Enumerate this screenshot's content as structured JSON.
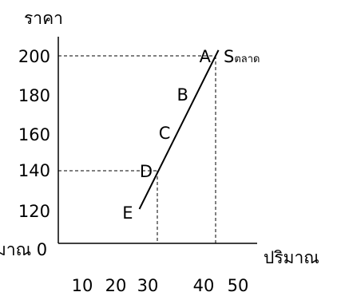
{
  "chart_data": {
    "type": "line",
    "ylabel": "ราคา",
    "xlabel": "ปริมาณ",
    "left_cut_label": "มาณ 0",
    "y_ticks": [
      "200",
      "180",
      "160",
      "140",
      "120"
    ],
    "x_ticks": [
      "10",
      "20",
      "30",
      "40",
      "50"
    ],
    "series": [
      {
        "name": "Sตลาด",
        "symbol": "S",
        "subscript": "ตลาด",
        "points": [
          {
            "label": "E",
            "x": 26,
            "y": 120
          },
          {
            "label": "D",
            "x": 30,
            "y": 140
          },
          {
            "label": "C",
            "x": 34,
            "y": 160
          },
          {
            "label": "B",
            "x": 38,
            "y": 180
          },
          {
            "label": "A",
            "x": 43,
            "y": 200
          }
        ]
      }
    ],
    "guides": [
      {
        "x": 30,
        "y": 140
      },
      {
        "x": 43,
        "y": 200
      }
    ],
    "colors": {
      "ink": "#000000",
      "background": "#ffffff"
    }
  }
}
